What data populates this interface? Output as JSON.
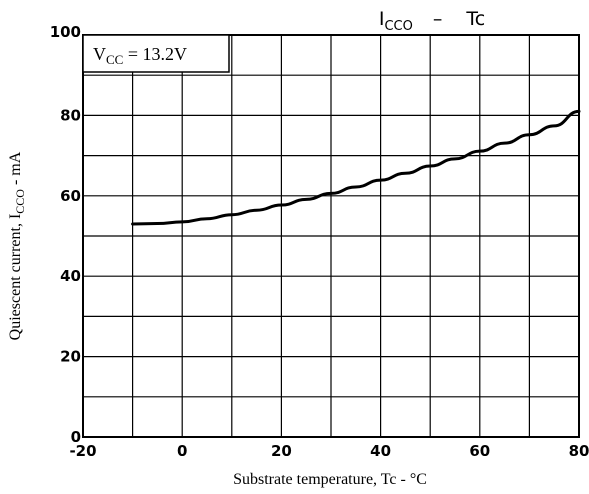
{
  "chart_data": {
    "type": "line",
    "title": {
      "main": "I",
      "main_sub": "CCO",
      "separator": "–",
      "variable": "Tc"
    },
    "xlabel": "Substrate temperature, Tc - °C",
    "ylabel": {
      "prefix": "Quiescent current, I",
      "sub": "CCO",
      "suffix": " - mA"
    },
    "xlim": [
      -20,
      80
    ],
    "ylim": [
      0,
      100
    ],
    "x_ticks": [
      -20,
      0,
      20,
      40,
      60,
      80
    ],
    "y_ticks": [
      0,
      20,
      40,
      60,
      80,
      100
    ],
    "grid": true,
    "grid_step_x": 10,
    "grid_step_y": 10,
    "annotation": {
      "main": "V",
      "sub": "CC",
      "rest": " = 13.2V"
    },
    "series": [
      {
        "x": [
          -10,
          -5,
          0,
          5,
          10,
          15,
          20,
          25,
          30,
          35,
          40,
          45,
          50,
          55,
          60,
          65,
          70,
          75,
          80
        ],
        "y": [
          53,
          53.1,
          53.5,
          54.3,
          55.3,
          56.4,
          57.7,
          59.1,
          60.6,
          62.2,
          63.9,
          65.6,
          67.4,
          69.2,
          71.1,
          73.1,
          75.2,
          77.4,
          81
        ],
        "color": "#000000"
      }
    ]
  }
}
